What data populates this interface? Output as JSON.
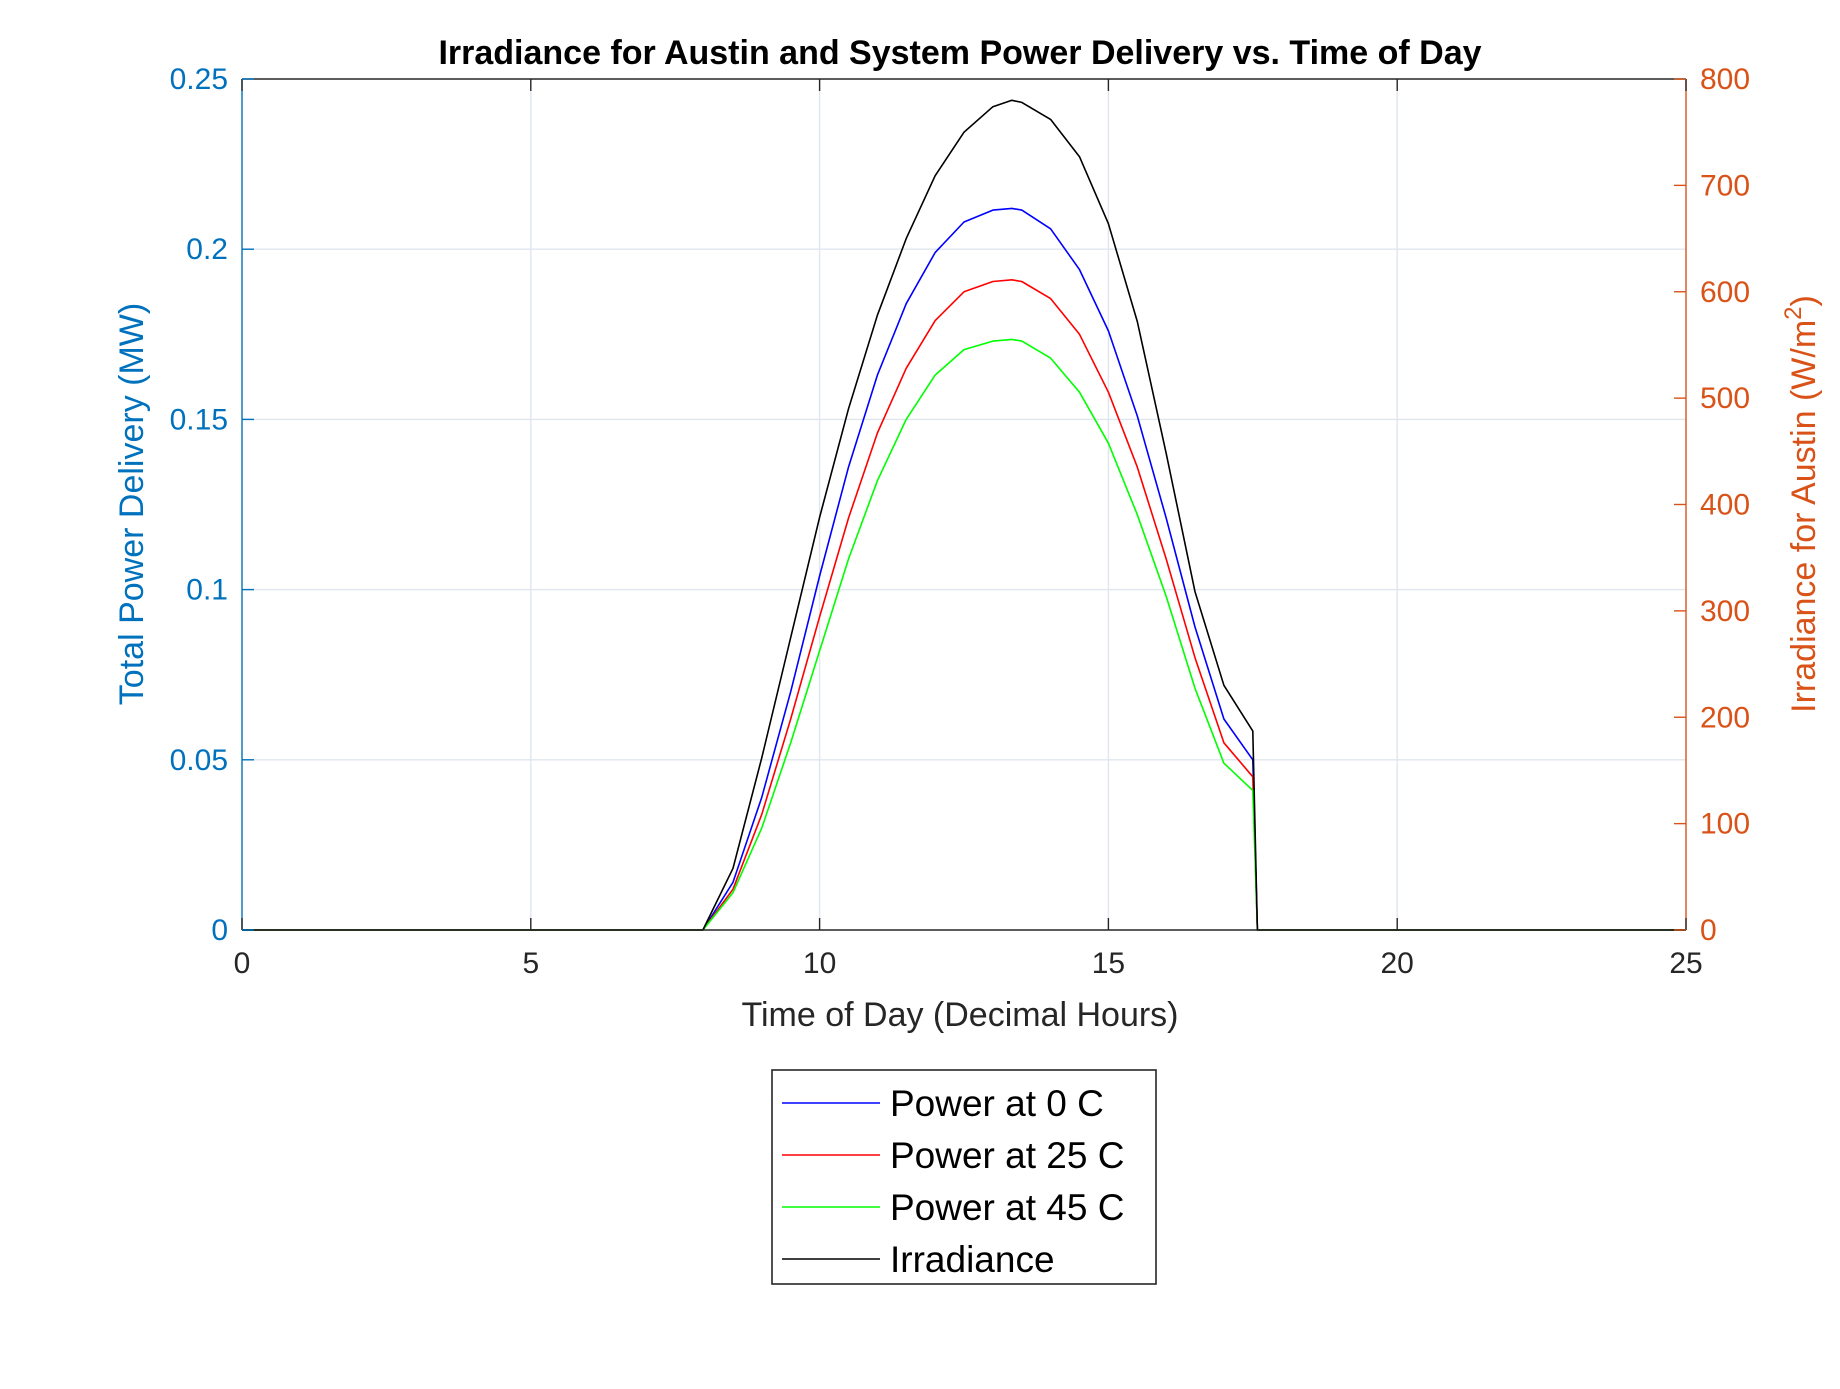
{
  "chart_data": {
    "type": "line",
    "title": "Irradiance for Austin and System Power Delivery vs. Time of Day",
    "xlabel": "Time of Day (Decimal Hours)",
    "ylabel_left": "Total Power Delivery (MW)",
    "ylabel_right_prefix": "Irradiance for Austin (W/m",
    "ylabel_right_superscript": "2",
    "ylabel_right_suffix": ")",
    "xlim": [
      0,
      25
    ],
    "ylim_left": [
      0,
      0.25
    ],
    "ylim_right": [
      0,
      800
    ],
    "xticks": [
      0,
      5,
      10,
      15,
      20,
      25
    ],
    "xtick_labels": [
      "0",
      "5",
      "10",
      "15",
      "20",
      "25"
    ],
    "yticks_left": [
      0,
      0.05,
      0.1,
      0.15,
      0.2,
      0.25
    ],
    "ytick_labels_left": [
      "0",
      "0.05",
      "0.1",
      "0.15",
      "0.2",
      "0.25"
    ],
    "yticks_right": [
      0,
      100,
      200,
      300,
      400,
      500,
      600,
      700,
      800
    ],
    "ytick_labels_right": [
      "0",
      "100",
      "200",
      "300",
      "400",
      "500",
      "600",
      "700",
      "800"
    ],
    "grid": true,
    "legend_position": "below-center",
    "axis_colors": {
      "left": "#0072BD",
      "right": "#D95319",
      "x": "#262626"
    },
    "series": [
      {
        "name": "Power at 0 C",
        "axis": "left",
        "color": "#0000FF",
        "x": [
          0,
          7.98,
          8.5,
          9,
          9.5,
          10,
          10.5,
          11,
          11.5,
          12,
          12.5,
          13,
          13.33,
          13.5,
          14,
          14.5,
          15,
          15.5,
          16,
          16.5,
          17,
          17.5,
          17.58,
          25
        ],
        "y": [
          0,
          0,
          0.014,
          0.039,
          0.07,
          0.104,
          0.136,
          0.163,
          0.184,
          0.199,
          0.208,
          0.2115,
          0.212,
          0.2115,
          0.206,
          0.194,
          0.176,
          0.151,
          0.121,
          0.089,
          0.062,
          0.05,
          0,
          0
        ]
      },
      {
        "name": "Power at 25 C",
        "axis": "left",
        "color": "#FF0000",
        "x": [
          0,
          7.98,
          8.5,
          9,
          9.5,
          10,
          10.5,
          11,
          11.5,
          12,
          12.5,
          13,
          13.33,
          13.5,
          14,
          14.5,
          15,
          15.5,
          16,
          16.5,
          17,
          17.5,
          17.58,
          25
        ],
        "y": [
          0,
          0,
          0.012,
          0.034,
          0.062,
          0.092,
          0.121,
          0.146,
          0.165,
          0.179,
          0.1875,
          0.1905,
          0.191,
          0.1905,
          0.1855,
          0.175,
          0.158,
          0.136,
          0.109,
          0.08,
          0.055,
          0.045,
          0,
          0
        ]
      },
      {
        "name": "Power at 45 C",
        "axis": "left",
        "color": "#00FF00",
        "x": [
          0,
          7.98,
          8.5,
          9,
          9.5,
          10,
          10.5,
          11,
          11.5,
          12,
          12.5,
          13,
          13.33,
          13.5,
          14,
          14.5,
          15,
          15.5,
          16,
          16.5,
          17,
          17.5,
          17.58,
          25
        ],
        "y": [
          0,
          0,
          0.011,
          0.03,
          0.055,
          0.082,
          0.109,
          0.132,
          0.15,
          0.163,
          0.1705,
          0.173,
          0.1735,
          0.173,
          0.168,
          0.158,
          0.143,
          0.122,
          0.098,
          0.071,
          0.049,
          0.041,
          0,
          0
        ]
      },
      {
        "name": "Irradiance",
        "axis": "right",
        "color": "#000000",
        "x": [
          0,
          7.98,
          8.5,
          9,
          9.5,
          10,
          10.5,
          11,
          11.5,
          12,
          12.5,
          13,
          13.33,
          13.5,
          14,
          14.5,
          15,
          15.5,
          16,
          16.5,
          17,
          17.5,
          17.58,
          25
        ],
        "y": [
          0,
          0,
          58,
          162,
          275,
          388,
          490,
          578,
          650,
          709,
          750,
          774,
          780,
          778,
          762,
          727,
          664,
          572,
          448,
          318,
          230,
          187,
          0,
          0
        ]
      }
    ]
  }
}
